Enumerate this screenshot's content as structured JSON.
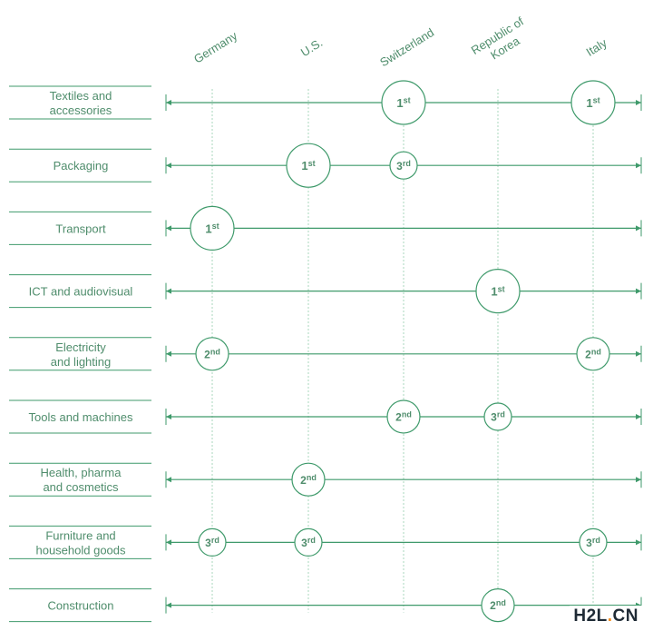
{
  "chart_data": {
    "type": "rank-dot-matrix",
    "countries": [
      "Germany",
      "U.S.",
      "Switzerland",
      "Republic of Korea",
      "Italy"
    ],
    "categories": [
      "Textiles and accessories",
      "Packaging",
      "Transport",
      "ICT and audiovisual",
      "Electricity and lighting",
      "Tools and machines",
      "Health, pharma and cosmetics",
      "Furniture and household goods",
      "Construction"
    ],
    "ranks": [
      {
        "category": "Textiles and accessories",
        "country": "Switzerland",
        "rank": 1
      },
      {
        "category": "Textiles and accessories",
        "country": "Italy",
        "rank": 1
      },
      {
        "category": "Packaging",
        "country": "U.S.",
        "rank": 1
      },
      {
        "category": "Packaging",
        "country": "Switzerland",
        "rank": 3
      },
      {
        "category": "Transport",
        "country": "Germany",
        "rank": 1
      },
      {
        "category": "ICT and audiovisual",
        "country": "Republic of Korea",
        "rank": 1
      },
      {
        "category": "Electricity and lighting",
        "country": "Germany",
        "rank": 2
      },
      {
        "category": "Electricity and lighting",
        "country": "Italy",
        "rank": 2
      },
      {
        "category": "Tools and machines",
        "country": "Switzerland",
        "rank": 2
      },
      {
        "category": "Tools and machines",
        "country": "Republic of Korea",
        "rank": 3
      },
      {
        "category": "Health, pharma and cosmetics",
        "country": "U.S.",
        "rank": 2
      },
      {
        "category": "Furniture and household goods",
        "country": "Germany",
        "rank": 3
      },
      {
        "category": "Furniture and household goods",
        "country": "U.S.",
        "rank": 3
      },
      {
        "category": "Furniture and household goods",
        "country": "Italy",
        "rank": 3
      },
      {
        "category": "Construction",
        "country": "Republic of Korea",
        "rank": 2
      }
    ],
    "rank_labels": {
      "1": [
        "1",
        "st"
      ],
      "2": [
        "2",
        "nd"
      ],
      "3": [
        "3",
        "rd"
      ]
    },
    "colors": {
      "accent": "#3f9a6b",
      "guide": "#a9d7be",
      "text": "#4f8d6c",
      "bubble_fill": "#ffffff"
    }
  },
  "watermark": {
    "left": "H2L",
    "dot": ".",
    "right": "CN"
  }
}
